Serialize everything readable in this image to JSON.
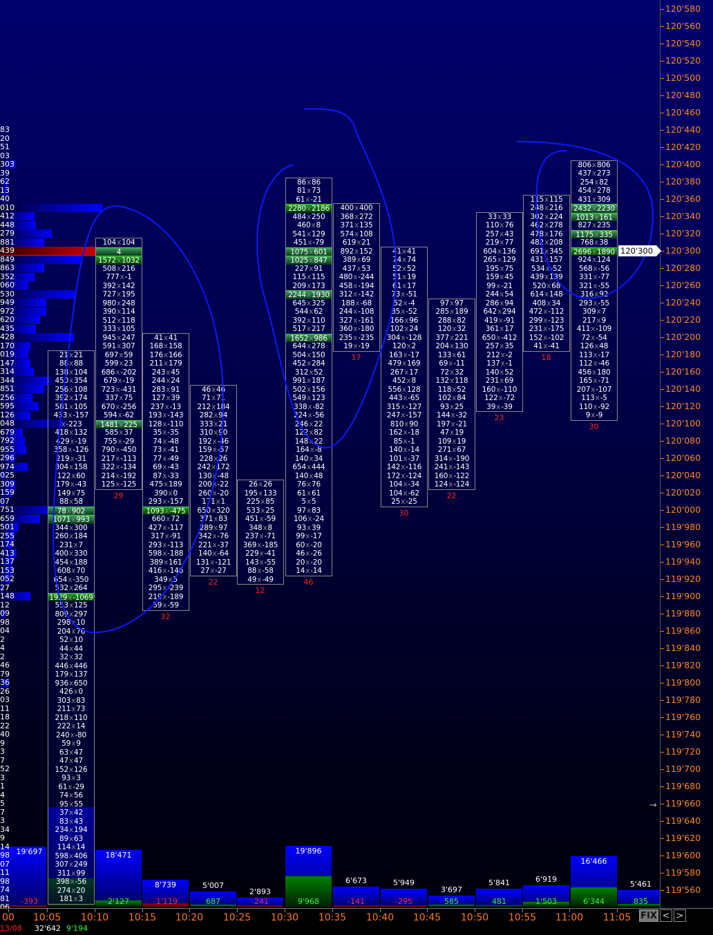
{
  "price_axis": {
    "labels": [
      "120'580",
      "120'560",
      "120'540",
      "120'520",
      "120'500",
      "120'480",
      "120'460",
      "120'440",
      "120'420",
      "120'400",
      "120'380",
      "120'360",
      "120'340",
      "120'320",
      "120'300",
      "120'280",
      "120'260",
      "120'240",
      "120'220",
      "120'200",
      "120'180",
      "120'160",
      "120'140",
      "120'120",
      "120'100",
      "120'080",
      "120'060",
      "120'040",
      "120'020",
      "120'000",
      "119'980",
      "119'960",
      "119'940",
      "119'920",
      "119'900",
      "119'880",
      "119'860",
      "119'840",
      "119'820",
      "119'800",
      "119'780",
      "119'760",
      "119'740",
      "119'720",
      "119'700",
      "119'680",
      "119'660",
      "119'640",
      "119'620",
      "119'600",
      "119'580",
      "119'560"
    ],
    "current_price": "120'300",
    "label_color": "#ff8a20"
  },
  "time_axis": {
    "date": "13/08",
    "labels": [
      "00",
      "10:05",
      "10:10",
      "10:15",
      "10:20",
      "10:25",
      "10:30",
      "10:35",
      "10:40",
      "10:45",
      "10:50",
      "10:55",
      "11:00",
      "11:05"
    ]
  },
  "controls": {
    "fix": "FIX",
    "prev": "<",
    "next": ">"
  },
  "volume_profile": {
    "top_price": "120'440",
    "poc_label": "439",
    "rows": [
      {
        "t": "83",
        "w": 0
      },
      {
        "t": "20",
        "w": 0
      },
      {
        "t": "51",
        "w": 0
      },
      {
        "t": "03",
        "w": 0
      },
      {
        "t": "303",
        "w": 0.15
      },
      {
        "t": "39",
        "w": 0
      },
      {
        "t": "62",
        "w": 0.07
      },
      {
        "t": "13",
        "w": 0.07
      },
      {
        "t": "40",
        "w": 0
      },
      {
        "t": "010",
        "w": 1.0
      },
      {
        "t": "412",
        "w": 0.34
      },
      {
        "t": "448",
        "w": 0.35
      },
      {
        "t": "279",
        "w": 0.51
      },
      {
        "t": "881",
        "w": 0.43
      },
      {
        "t": "439",
        "w": 1.27,
        "poc": true
      },
      {
        "t": "849",
        "w": 0.79
      },
      {
        "t": "863",
        "w": 0.43
      },
      {
        "t": "352",
        "w": 0.34
      },
      {
        "t": "060",
        "w": 0.28
      },
      {
        "t": "530",
        "w": 0.73
      },
      {
        "t": "949",
        "w": 0.45
      },
      {
        "t": "972",
        "w": 0.45
      },
      {
        "t": "620",
        "w": 0.39
      },
      {
        "t": "435",
        "w": 0.35
      },
      {
        "t": "428",
        "w": 0.72
      },
      {
        "t": "170",
        "w": 0.3
      },
      {
        "t": "019",
        "w": 0.28
      },
      {
        "t": "147",
        "w": 0.3
      },
      {
        "t": "314",
        "w": 0.33
      },
      {
        "t": "344",
        "w": 0.51
      },
      {
        "t": "851",
        "w": 0.43
      },
      {
        "t": "256",
        "w": 0.32
      },
      {
        "t": "595",
        "w": 0.38
      },
      {
        "t": "126",
        "w": 0.3
      },
      {
        "t": "048",
        "w": 0.64
      },
      {
        "t": "679",
        "w": 0.22
      },
      {
        "t": "792",
        "w": 0.24
      },
      {
        "t": "955",
        "w": 0.26
      },
      {
        "t": "296",
        "w": 0.14
      },
      {
        "t": "974",
        "w": 0.27
      },
      {
        "t": "025",
        "w": 0.05
      },
      {
        "t": "309",
        "w": 0.15
      },
      {
        "t": "159",
        "w": 0.12
      },
      {
        "t": "07",
        "w": 0.04
      },
      {
        "t": "751",
        "w": 0.6
      },
      {
        "t": "659",
        "w": 0.39
      },
      {
        "t": "501",
        "w": 0.18
      },
      {
        "t": "255",
        "w": 0.14
      },
      {
        "t": "174",
        "w": 0.12
      },
      {
        "t": "413",
        "w": 0.16
      },
      {
        "t": "137",
        "w": 0.12
      },
      {
        "t": "153",
        "w": 0.12
      },
      {
        "t": "052",
        "w": 0.1
      },
      {
        "t": "27",
        "w": 0.03
      },
      {
        "t": "148",
        "w": 0.3
      },
      {
        "t": "12",
        "w": 0
      },
      {
        "t": "09",
        "w": 0.05
      },
      {
        "t": "98",
        "w": 0
      },
      {
        "t": "04",
        "w": 0
      },
      {
        "t": "2",
        "w": 0
      },
      {
        "t": "4",
        "w": 0
      },
      {
        "t": "2",
        "w": 0
      },
      {
        "t": "46",
        "w": 0
      },
      {
        "t": "79",
        "w": 0
      },
      {
        "t": "36",
        "w": 0.08
      },
      {
        "t": "26",
        "w": 0
      },
      {
        "t": "03",
        "w": 0
      },
      {
        "t": "11",
        "w": 0
      },
      {
        "t": "18",
        "w": 0
      },
      {
        "t": "22",
        "w": 0
      },
      {
        "t": "40",
        "w": 0
      },
      {
        "t": "9",
        "w": 0
      },
      {
        "t": "3",
        "w": 0
      },
      {
        "t": "7",
        "w": 0
      },
      {
        "t": "52",
        "w": 0
      },
      {
        "t": "3",
        "w": 0
      },
      {
        "t": "1",
        "w": 0
      },
      {
        "t": "4",
        "w": 0
      },
      {
        "t": "5",
        "w": 0
      },
      {
        "t": "7",
        "w": 0
      },
      {
        "t": "3",
        "w": 0
      },
      {
        "t": "34",
        "w": 0
      },
      {
        "t": "9",
        "w": 0
      },
      {
        "t": "14",
        "w": 0
      },
      {
        "t": "98",
        "w": 0
      },
      {
        "t": "07",
        "w": 0
      },
      {
        "t": "11",
        "w": 0
      },
      {
        "t": "98",
        "w": 0
      },
      {
        "t": "74",
        "w": 0
      },
      {
        "t": "81",
        "w": 0
      },
      {
        "t": "06",
        "w": 0
      }
    ]
  },
  "footprint": [
    {
      "time": "10:05",
      "high": "120'180",
      "count": "",
      "cells": [
        "21x21",
        "88x88",
        "138x104",
        "450x354",
        "256x108",
        "392x174",
        "581x105",
        "433x-157",
        "x-223",
        "418x132",
        "429x-19",
        "358x-126",
        "219x-31",
        "304x158",
        "122x60",
        "179x-43",
        "149x75",
        "88x58",
        "78x902",
        "1071x993",
        "344x300",
        "260x184",
        "231x7",
        "400x330",
        "454x188",
        "608x70",
        "654x-350",
        "532x264",
        "1929x-1069",
        "553x125",
        "809x297",
        "298x10",
        "204x76",
        "52x10",
        "44x44",
        "32x32",
        "446x446",
        "179x137",
        "936x650",
        "426x0",
        "303x83",
        "211x73",
        "218x110",
        "222x14",
        "240x-80",
        "59x9",
        "63x47",
        "47x47",
        "152x126",
        "93x3",
        "61x-29",
        "74x56",
        "95x55",
        "37x42",
        "83x43",
        "234x194",
        "89x63",
        "114x14",
        "598x406",
        "307x249",
        "311x99",
        "398x-56",
        "274x20",
        "181x3"
      ],
      "highlighted": [
        "78x902",
        "1071x993"
      ],
      "strong": [
        "1929x-1069"
      ]
    },
    {
      "time": "10:10",
      "high": "120'310",
      "count": "29",
      "cells": [
        "104x104",
        "4",
        "1572x1032",
        "508x216",
        "777x-1",
        "392x142",
        "727x195",
        "980x248",
        "390x114",
        "512x118",
        "333x105",
        "945x247",
        "591x307",
        "697x59",
        "599x23",
        "686x-202",
        "679x-19",
        "723x-431",
        "337x75",
        "670x-256",
        "594x-62",
        "1481x225",
        "585x37",
        "755x-29",
        "790x-450",
        "217x-113",
        "322x-134",
        "214x-192",
        "125x-125"
      ],
      "highlighted": [
        "4",
        "1481x225"
      ],
      "strong": [
        "1572x1032"
      ]
    },
    {
      "time": "10:15",
      "high": "120'200",
      "count": "32",
      "cells": [
        "41x41",
        "168x158",
        "176x166",
        "211x179",
        "243x45",
        "244x24",
        "283x91",
        "127x39",
        "237x-13",
        "193x-143",
        "128x-110",
        "35x-35",
        "74x-48",
        "73x-41",
        "77x-49",
        "69x-43",
        "87x-33",
        "475x189",
        "390x0",
        "293x-157",
        "1093x-475",
        "660x72",
        "427x-117",
        "317x-91",
        "293x-113",
        "598x-188",
        "389x161",
        "416x-146",
        "349x5",
        "295x-239",
        "219x-189",
        "59x-59"
      ],
      "highlighted": [],
      "strong": [
        "1093x-475"
      ]
    },
    {
      "time": "10:20",
      "high": "120'140",
      "count": "22",
      "cells": [
        "46x46",
        "71x71",
        "212x184",
        "282x94",
        "333x21",
        "310x90",
        "192x-46",
        "159x-57",
        "228x26",
        "242x172",
        "130x-48",
        "200x-22",
        "260x-20",
        "171x1",
        "650x320",
        "371x83",
        "289x97",
        "342x-76",
        "221x-37",
        "140x-64",
        "131x-121",
        "27x-27"
      ],
      "highlighted": [],
      "strong": []
    },
    {
      "time": "10:25",
      "high": "120'030",
      "count": "12",
      "cells": [
        "26x26",
        "195x133",
        "225x85",
        "533x25",
        "451x-59",
        "348x8",
        "237x-71",
        "369x-185",
        "229x-41",
        "143x-55",
        "88x-58",
        "49x-49"
      ],
      "highlighted": [],
      "strong": []
    },
    {
      "time": "10:30",
      "high": "120'380",
      "count": "46",
      "cells": [
        "86x86",
        "81x73",
        "61x-21",
        "2280x2186",
        "484x250",
        "460x8",
        "541x129",
        "451x-79",
        "1075x601",
        "1025x847",
        "227x91",
        "115x115",
        "209x173",
        "2244x1930",
        "645x325",
        "544x62",
        "392x110",
        "517x217",
        "1652x986",
        "644x278",
        "504x150",
        "452x284",
        "312x52",
        "991x187",
        "502x156",
        "549x123",
        "338x-82",
        "224x-56",
        "246x22",
        "122x82",
        "148x22",
        "164x-8",
        "140x34",
        "654x444",
        "140x48",
        "76x76",
        "61x61",
        "5x5",
        "97x83",
        "106x-24",
        "93x39",
        "99x-17",
        "60x-20",
        "46x-26",
        "20x-20",
        "14x-14"
      ],
      "highlighted": [
        "1075x601",
        "1025x847",
        "2244x1930",
        "1652x986"
      ],
      "strong": [
        "2280x2186"
      ]
    },
    {
      "time": "10:35",
      "high": "120'350",
      "count": "17",
      "cells": [
        "400x400",
        "368x272",
        "371x135",
        "574x108",
        "619x21",
        "892x152",
        "389x69",
        "437x53",
        "480x-244",
        "458x-194",
        "312x-142",
        "188x-68",
        "244x-108",
        "327x-161",
        "360x-180",
        "235x-235",
        "19x-19"
      ],
      "highlighted": [],
      "strong": []
    },
    {
      "time": "10:40",
      "high": "120'300",
      "count": "30",
      "cells": [
        "41x41",
        "74x74",
        "52x52",
        "51x19",
        "61x17",
        "73x-51",
        "52x-4",
        "85x-52",
        "166x96",
        "102x24",
        "304x-128",
        "120x2",
        "163x-17",
        "479x169",
        "267x17",
        "452x8",
        "556x128",
        "443x-65",
        "315x-127",
        "247x-157",
        "810x90",
        "162x-18",
        "85x-1",
        "140x-14",
        "101x-37",
        "142x-116",
        "172x-124",
        "104x-34",
        "104x-62",
        "25x-25"
      ],
      "highlighted": [],
      "strong": []
    },
    {
      "time": "10:45",
      "high": "120'240",
      "count": "22",
      "cells": [
        "97x97",
        "285x189",
        "288x82",
        "120x32",
        "377x221",
        "204x130",
        "133x61",
        "69x-11",
        "72x32",
        "132x118",
        "118x52",
        "102x84",
        "93x25",
        "144x-32",
        "197x-21",
        "47x19",
        "109x19",
        "271x67",
        "314x-190",
        "241x-143",
        "160x-122",
        "124x-124"
      ],
      "highlighted": [],
      "strong": []
    },
    {
      "time": "10:50",
      "high": "120'340",
      "count": "23",
      "cells": [
        "33x33",
        "110x76",
        "257x43",
        "219x77",
        "604x136",
        "265x129",
        "195x75",
        "159x45",
        "99x-21",
        "244x54",
        "286x94",
        "642x294",
        "419x-91",
        "361x17",
        "650x-412",
        "257x35",
        "212x-2",
        "137x-1",
        "140x52",
        "231x69",
        "160x-110",
        "122x-72",
        "39x-39"
      ],
      "highlighted": [],
      "strong": []
    },
    {
      "time": "10:55",
      "high": "120'360",
      "count": "18",
      "cells": [
        "115x115",
        "248x216",
        "302x224",
        "462x278",
        "478x176",
        "482x208",
        "691x345",
        "431x157",
        "534x-52",
        "439x139",
        "520x68",
        "614x148",
        "408x34",
        "472x-112",
        "299x-123",
        "231x-175",
        "152x-102",
        "41x-41"
      ],
      "highlighted": [],
      "strong": []
    },
    {
      "time": "11:00",
      "high": "120'400",
      "count": "30",
      "cells": [
        "806x806",
        "437x273",
        "254x82",
        "454x278",
        "431x309",
        "2432x2230",
        "1013x161",
        "827x235",
        "1175x335",
        "768x38",
        "2696x1890",
        "924x124",
        "568x-56",
        "331x-77",
        "321x-55",
        "316x92",
        "293x-55",
        "309x7",
        "217x9",
        "411x-109",
        "72x-54",
        "126x48",
        "113x-17",
        "112x-46",
        "456x180",
        "165x-71",
        "207x-107",
        "113x-5",
        "110x-92",
        "9x-9"
      ],
      "highlighted": [
        "2432x2230",
        "1013x161",
        "1175x335"
      ],
      "strong": [
        "2696x1890"
      ]
    }
  ],
  "volume_bars": [
    {
      "time": "10:00",
      "volume": "19'697",
      "delta": "-393",
      "v": 19697,
      "d": -393
    },
    {
      "time": "10:05",
      "volume": "32'642",
      "delta": "9'194",
      "v": 32642,
      "d": 9194
    },
    {
      "time": "10:10",
      "volume": "18'471",
      "delta": "2'127",
      "v": 18471,
      "d": 2127
    },
    {
      "time": "10:15",
      "volume": "8'739",
      "delta": "-1'119",
      "v": 8739,
      "d": -1119
    },
    {
      "time": "10:20",
      "volume": "5'007",
      "delta": "687",
      "v": 5007,
      "d": 687
    },
    {
      "time": "10:25",
      "volume": "2'893",
      "delta": "-241",
      "v": 2893,
      "d": -241
    },
    {
      "time": "10:30",
      "volume": "19'896",
      "delta": "9'968",
      "v": 19896,
      "d": 9968
    },
    {
      "time": "10:35",
      "volume": "6'673",
      "delta": "-141",
      "v": 6673,
      "d": -141
    },
    {
      "time": "10:40",
      "volume": "5'949",
      "delta": "-295",
      "v": 5949,
      "d": -295
    },
    {
      "time": "10:45",
      "volume": "3'697",
      "delta": "585",
      "v": 3697,
      "d": 585
    },
    {
      "time": "10:50",
      "volume": "5'841",
      "delta": "481",
      "v": 5841,
      "d": 481
    },
    {
      "time": "10:55",
      "volume": "6'919",
      "delta": "1'503",
      "v": 6919,
      "d": 1503
    },
    {
      "time": "11:00",
      "volume": "16'466",
      "delta": "6'344",
      "v": 16466,
      "d": 6344
    },
    {
      "time": "11:05",
      "volume": "5'461",
      "delta": "835",
      "v": 5461,
      "d": 835
    }
  ],
  "colors": {
    "background": "#00006c",
    "volume": "#0000ff",
    "positive": "#008000",
    "negative": "#ff2020",
    "poc": "#ff0000",
    "highlight": "#2e8b57",
    "drawing": "#0a1aff"
  }
}
